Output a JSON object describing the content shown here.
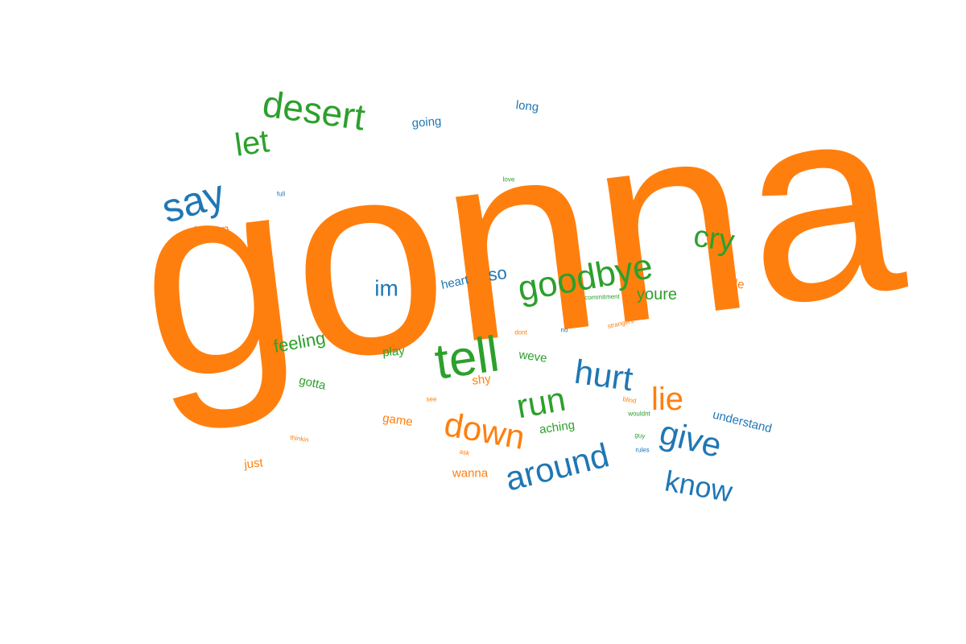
{
  "colors": {
    "orange": "#ff7f0e",
    "green": "#2ca02c",
    "blue": "#1f77b4"
  },
  "words": [
    {
      "text": "gonna",
      "color": "orange"
    },
    {
      "text": "desert",
      "color": "green"
    },
    {
      "text": "let",
      "color": "green"
    },
    {
      "text": "say",
      "color": "blue"
    },
    {
      "text": "going",
      "color": "blue"
    },
    {
      "text": "long",
      "color": "blue"
    },
    {
      "text": "full",
      "color": "blue"
    },
    {
      "text": "love",
      "color": "green"
    },
    {
      "text": "known",
      "color": "orange"
    },
    {
      "text": "cry",
      "color": "green"
    },
    {
      "text": "goodbye",
      "color": "green"
    },
    {
      "text": "im",
      "color": "blue"
    },
    {
      "text": "heart",
      "color": "blue"
    },
    {
      "text": "so",
      "color": "blue"
    },
    {
      "text": "youre",
      "color": "green"
    },
    {
      "text": "inside",
      "color": "orange"
    },
    {
      "text": "commitment",
      "color": "green"
    },
    {
      "text": "tell",
      "color": "green"
    },
    {
      "text": "feeling",
      "color": "green"
    },
    {
      "text": "dont",
      "color": "orange"
    },
    {
      "text": "no",
      "color": "blue"
    },
    {
      "text": "strangers",
      "color": "orange"
    },
    {
      "text": "play",
      "color": "green"
    },
    {
      "text": "weve",
      "color": "green"
    },
    {
      "text": "hurt",
      "color": "blue"
    },
    {
      "text": "gotta",
      "color": "green"
    },
    {
      "text": "shy",
      "color": "orange"
    },
    {
      "text": "run",
      "color": "green"
    },
    {
      "text": "lie",
      "color": "orange"
    },
    {
      "text": "see",
      "color": "orange"
    },
    {
      "text": "blind",
      "color": "orange"
    },
    {
      "text": "game",
      "color": "orange"
    },
    {
      "text": "down",
      "color": "orange"
    },
    {
      "text": "wouldnt",
      "color": "green"
    },
    {
      "text": "understand",
      "color": "blue"
    },
    {
      "text": "aching",
      "color": "green"
    },
    {
      "text": "give",
      "color": "blue"
    },
    {
      "text": "thinkin",
      "color": "orange"
    },
    {
      "text": "guy",
      "color": "green"
    },
    {
      "text": "rules",
      "color": "blue"
    },
    {
      "text": "ask",
      "color": "orange"
    },
    {
      "text": "just",
      "color": "orange"
    },
    {
      "text": "around",
      "color": "blue"
    },
    {
      "text": "wanna",
      "color": "orange"
    },
    {
      "text": "know",
      "color": "blue"
    }
  ]
}
